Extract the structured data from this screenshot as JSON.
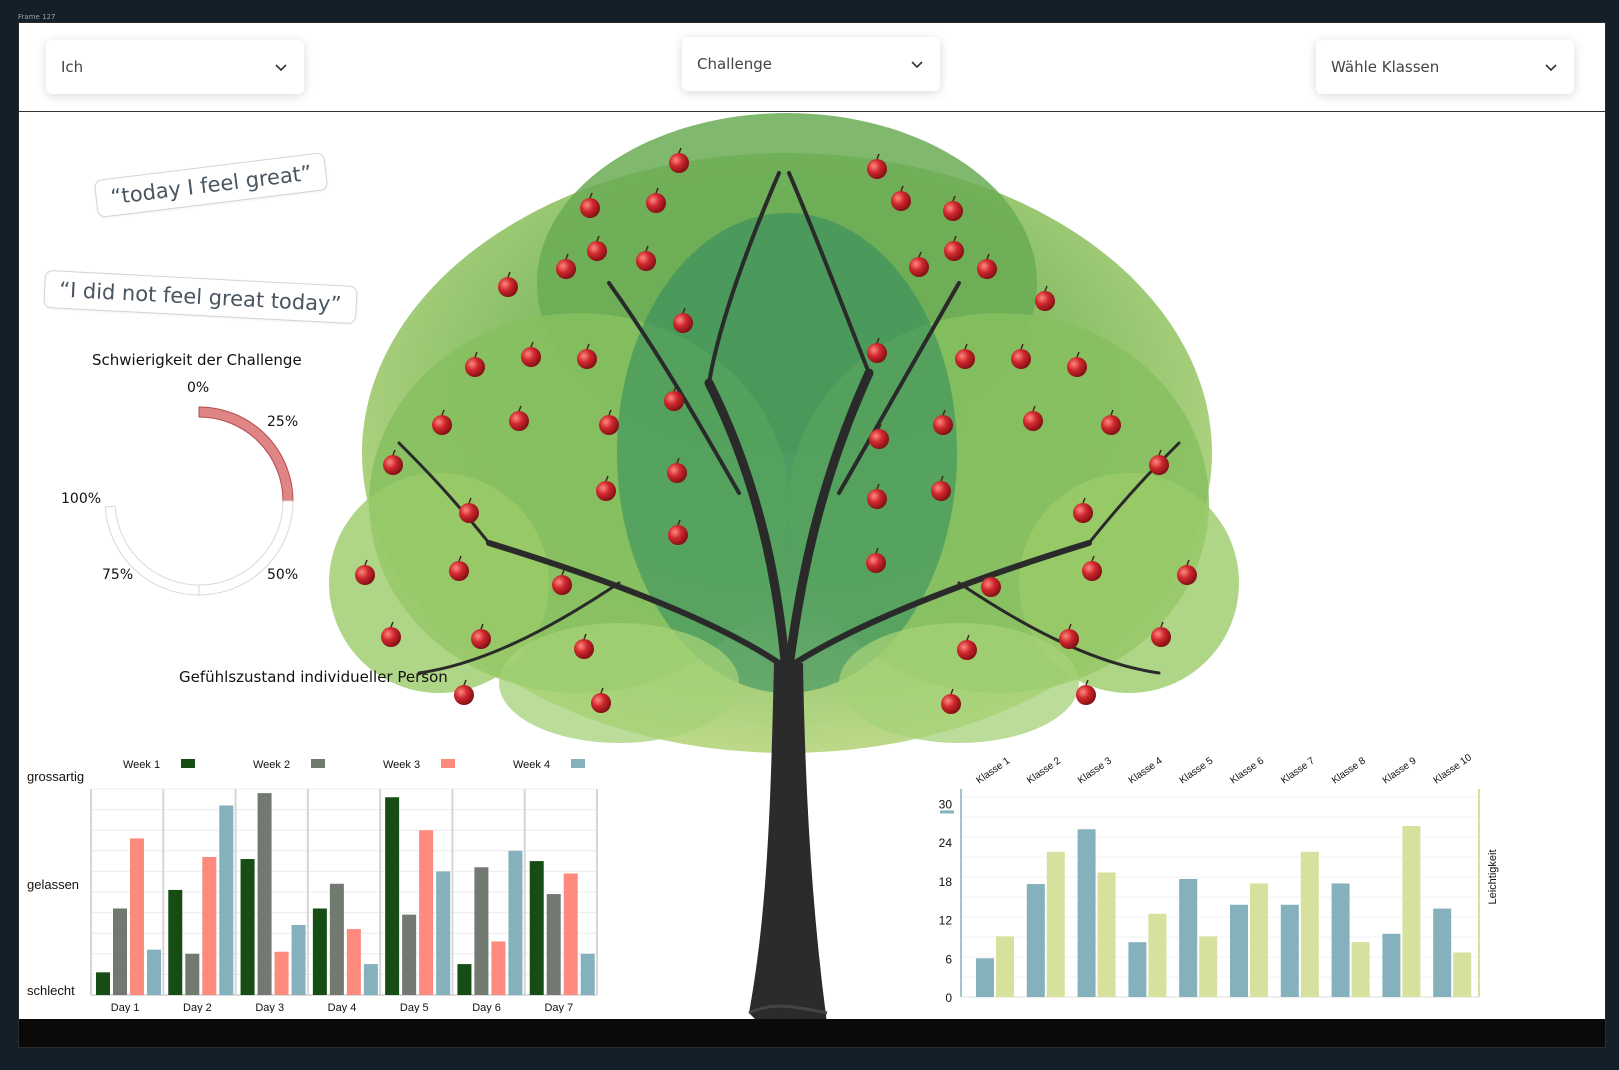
{
  "frame": {
    "label": "Frame 127"
  },
  "dropdowns": {
    "person": {
      "value": "Ich"
    },
    "challenge": {
      "value": "Challenge"
    },
    "klassen": {
      "value": "Wähle Klassen"
    }
  },
  "quotes": [
    "“today I feel great”",
    "“I did not feel great today”"
  ],
  "colors": {
    "week1": "#154d14",
    "week2": "#717971",
    "week3": "#fd8a7d",
    "week4": "#84b1bb",
    "series_a": "#84b1bb",
    "series_b": "#d5e19c",
    "gauge_fill": "#e08585",
    "apple": "#d0282e"
  },
  "gauge": {
    "title": "Schwierigkeit der Challenge",
    "value_percent": 25,
    "labels": {
      "p0": "0%",
      "p25": "25%",
      "p50": "50%",
      "p75": "75%",
      "p100": "100%"
    }
  },
  "tree": {
    "icon": "apple-tree-illustration"
  },
  "mood_chart": {
    "title": "Gefühlszustand individueller Person"
  },
  "chart_data": [
    {
      "type": "bar",
      "title": "Gefühlszustand individueller Person",
      "categories": [
        "Day 1",
        "Day 2",
        "Day 3",
        "Day 4",
        "Day 5",
        "Day 6",
        "Day 7"
      ],
      "y_tick_labels": [
        "grossartig",
        "gelassen",
        "schlecht"
      ],
      "ylim": [
        0,
        100
      ],
      "grid": true,
      "legend_position": "top",
      "series": [
        {
          "name": "Week 1",
          "values": [
            11,
            51,
            66,
            42,
            96,
            15,
            65
          ]
        },
        {
          "name": "Week 2",
          "values": [
            42,
            20,
            98,
            54,
            39,
            62,
            49
          ]
        },
        {
          "name": "Week 3",
          "values": [
            76,
            67,
            21,
            32,
            80,
            26,
            59
          ]
        },
        {
          "name": "Week 4",
          "values": [
            22,
            92,
            34,
            15,
            60,
            70,
            20
          ]
        }
      ]
    },
    {
      "type": "bar",
      "categories": [
        "Klasse 1",
        "Klasse 2",
        "Klasse 3",
        "Klasse 4",
        "Klasse 5",
        "Klasse 6",
        "Klasse 7",
        "Klasse 8",
        "Klasse 9",
        "Klasse 10"
      ],
      "y_ticks": [
        "0",
        "6",
        "12",
        "18",
        "24",
        "30"
      ],
      "ylim": [
        0,
        31
      ],
      "ylabel_right": "Leichtigkeit",
      "grid": true,
      "series": [
        {
          "values": [
            6,
            17.5,
            26,
            8.5,
            18.3,
            14.3,
            14.3,
            17.6,
            9.8,
            13.7
          ]
        },
        {
          "values": [
            9.4,
            22.5,
            19.3,
            12.9,
            9.4,
            17.6,
            22.5,
            8.5,
            26.5,
            6.9
          ]
        }
      ]
    }
  ]
}
